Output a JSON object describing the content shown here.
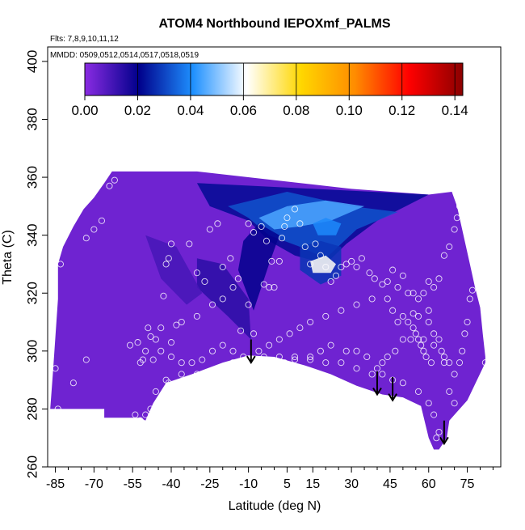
{
  "chart_data": {
    "type": "heatmap",
    "title": "ATOM4 Northbound IEPOXmf_PALMS",
    "annotations": [
      "Flts: 7,8,9,10,11,12",
      "MMDD: 0509,0512,0514,0517,0518,0519"
    ],
    "xlabel": "Latitude (deg N)",
    "ylabel": "Theta (C)",
    "xlim": [
      -88,
      88
    ],
    "ylim": [
      260,
      405
    ],
    "x_ticks": [
      -85,
      -70,
      -55,
      -40,
      -25,
      -10,
      5,
      15,
      30,
      45,
      60,
      75
    ],
    "x_tick_labels": [
      "-85",
      "-70",
      "-55",
      "-40",
      "-25",
      "-10",
      "5",
      "15",
      "30",
      "45",
      "60",
      "75"
    ],
    "y_ticks": [
      260,
      280,
      300,
      320,
      340,
      360,
      380,
      400
    ],
    "y_tick_labels": [
      "260",
      "280",
      "300",
      "320",
      "340",
      "360",
      "380",
      "400"
    ],
    "colorbar": {
      "min": 0,
      "max": 0.143,
      "ticks": [
        0.0,
        0.02,
        0.04,
        0.06,
        0.08,
        0.1,
        0.12,
        0.14
      ],
      "tick_labels": [
        "0.00",
        "0.02",
        "0.04",
        "0.06",
        "0.08",
        "0.10",
        "0.12",
        "0.14"
      ],
      "colors": [
        "#8a2be2",
        "#00008b",
        "#1e90ff",
        "#ffffff",
        "#ffd700",
        "#ff8c00",
        "#ff0000",
        "#8b0000"
      ]
    },
    "field_boundary": [
      [
        -87,
        280
      ],
      [
        -86,
        292
      ],
      [
        -85,
        305
      ],
      [
        -84,
        318
      ],
      [
        -84,
        330
      ],
      [
        -82,
        336
      ],
      [
        -78,
        343
      ],
      [
        -74,
        349
      ],
      [
        -70,
        353
      ],
      [
        -66,
        358
      ],
      [
        -63,
        362
      ],
      [
        -30,
        362
      ],
      [
        0,
        359
      ],
      [
        30,
        356
      ],
      [
        60,
        354
      ],
      [
        69,
        355
      ],
      [
        71,
        350
      ],
      [
        73,
        342
      ],
      [
        76,
        330
      ],
      [
        78,
        322
      ],
      [
        80,
        315
      ],
      [
        81,
        306
      ],
      [
        82,
        298
      ],
      [
        82,
        296
      ],
      [
        75,
        283
      ],
      [
        68,
        276
      ],
      [
        67,
        270
      ],
      [
        64,
        266
      ],
      [
        62,
        266
      ],
      [
        60,
        270
      ],
      [
        57,
        281
      ],
      [
        50,
        284
      ],
      [
        42,
        285
      ],
      [
        32,
        288
      ],
      [
        22,
        292
      ],
      [
        12,
        295
      ],
      [
        0,
        298
      ],
      [
        -10,
        298.5
      ],
      [
        -20,
        296
      ],
      [
        -32,
        292
      ],
      [
        -42,
        289
      ],
      [
        -47,
        282
      ],
      [
        -50,
        276
      ],
      [
        -52,
        277
      ],
      [
        -66,
        277
      ],
      [
        -66,
        280
      ],
      [
        -87,
        280
      ]
    ],
    "enhanced_regions": [
      {
        "polygon": [
          [
            -30,
            358
          ],
          [
            60,
            354
          ],
          [
            40,
            345
          ],
          [
            28,
            337
          ],
          [
            20,
            330
          ],
          [
            8,
            333
          ],
          [
            -2,
            338
          ],
          [
            -10,
            345
          ],
          [
            -25,
            350
          ]
        ],
        "value": 0.022
      },
      {
        "polygon": [
          [
            -18,
            350
          ],
          [
            5,
            355
          ],
          [
            30,
            350
          ],
          [
            48,
            348
          ],
          [
            32,
            342
          ],
          [
            20,
            332
          ],
          [
            10,
            336
          ],
          [
            -2,
            340
          ],
          [
            -10,
            346
          ]
        ],
        "value": 0.032
      },
      {
        "polygon": [
          [
            -6,
            346
          ],
          [
            5,
            350
          ],
          [
            20,
            352
          ],
          [
            35,
            350
          ],
          [
            22,
            345
          ],
          [
            10,
            343
          ],
          [
            0,
            342
          ]
        ],
        "value": 0.045
      },
      {
        "polygon": [
          [
            10,
            336
          ],
          [
            18,
            338
          ],
          [
            26,
            336
          ],
          [
            26,
            326
          ],
          [
            18,
            323
          ],
          [
            10,
            328
          ]
        ],
        "value": 0.028
      },
      {
        "polygon": [
          [
            14,
            331
          ],
          [
            20,
            333
          ],
          [
            24,
            330
          ],
          [
            22,
            327
          ],
          [
            15,
            327
          ]
        ],
        "value": 0.062
      },
      {
        "polygon": [
          [
            15,
            344
          ],
          [
            20,
            346
          ],
          [
            26,
            344
          ],
          [
            24,
            340
          ],
          [
            17,
            340
          ]
        ],
        "value": 0.04
      },
      {
        "polygon": [
          [
            -6,
            344
          ],
          [
            2,
            340
          ],
          [
            -2,
            330
          ],
          [
            -8,
            314
          ],
          [
            -14,
            328
          ],
          [
            -12,
            338
          ]
        ],
        "value": 0.02
      },
      {
        "polygon": [
          [
            -30,
            332
          ],
          [
            -20,
            330
          ],
          [
            -10,
            318
          ],
          [
            -9,
            304
          ],
          [
            -18,
            312
          ],
          [
            -30,
            322
          ]
        ],
        "value": 0.014
      },
      {
        "polygon": [
          [
            -50,
            340
          ],
          [
            -38,
            336
          ],
          [
            -28,
            320
          ],
          [
            -34,
            316
          ],
          [
            -44,
            325
          ]
        ],
        "value": 0.01
      }
    ],
    "points": [
      [
        -85,
        294
      ],
      [
        -84,
        280
      ],
      [
        -83,
        330
      ],
      [
        -78,
        289
      ],
      [
        -73,
        297
      ],
      [
        -73,
        339
      ],
      [
        -70,
        342
      ],
      [
        -67,
        345
      ],
      [
        -64,
        357
      ],
      [
        -62,
        359
      ],
      [
        -56,
        302
      ],
      [
        -53,
        303
      ],
      [
        -52,
        296
      ],
      [
        -51,
        297
      ],
      [
        -50,
        300
      ],
      [
        -49,
        308
      ],
      [
        -48,
        305
      ],
      [
        -47,
        297
      ],
      [
        -52,
        276
      ],
      [
        -41,
        289
      ],
      [
        -40,
        303
      ],
      [
        -38,
        309
      ],
      [
        -43,
        319
      ],
      [
        -42,
        330
      ],
      [
        -41,
        332
      ],
      [
        -40,
        337
      ],
      [
        -33,
        337
      ],
      [
        -30,
        327
      ],
      [
        -27,
        324
      ],
      [
        -25,
        342
      ],
      [
        -22,
        344
      ],
      [
        -20,
        329
      ],
      [
        -17,
        332
      ],
      [
        -14,
        325
      ],
      [
        -13,
        307
      ],
      [
        -10,
        344
      ],
      [
        -8,
        341
      ],
      [
        -5,
        343
      ],
      [
        -3,
        338
      ],
      [
        -1,
        331
      ],
      [
        -4,
        323
      ],
      [
        -2,
        322
      ],
      [
        0,
        322
      ],
      [
        2,
        331
      ],
      [
        3,
        339
      ],
      [
        4,
        343
      ],
      [
        5,
        346
      ],
      [
        8,
        349
      ],
      [
        10,
        344
      ],
      [
        12,
        336
      ],
      [
        14,
        330
      ],
      [
        16,
        337
      ],
      [
        18,
        333
      ],
      [
        20,
        329
      ],
      [
        22,
        324
      ],
      [
        24,
        326
      ],
      [
        26,
        329
      ],
      [
        28,
        330
      ],
      [
        30,
        331
      ],
      [
        32,
        329
      ],
      [
        34,
        332
      ],
      [
        37,
        327
      ],
      [
        39,
        325
      ],
      [
        42,
        323
      ],
      [
        44,
        324
      ],
      [
        46,
        328
      ],
      [
        48,
        322
      ],
      [
        50,
        326
      ],
      [
        52,
        320
      ],
      [
        54,
        320
      ],
      [
        56,
        318
      ],
      [
        58,
        320
      ],
      [
        60,
        314
      ],
      [
        60,
        310
      ],
      [
        59,
        298
      ],
      [
        58,
        300
      ],
      [
        61,
        296
      ],
      [
        62,
        306
      ],
      [
        64,
        304
      ],
      [
        65,
        300
      ],
      [
        66,
        298
      ],
      [
        68,
        296
      ],
      [
        70,
        292
      ],
      [
        72,
        296
      ],
      [
        73,
        300
      ],
      [
        74,
        306
      ],
      [
        75,
        310
      ],
      [
        76,
        318
      ],
      [
        77,
        321
      ],
      [
        78,
        330
      ],
      [
        79,
        340
      ],
      [
        80,
        345
      ],
      [
        80,
        350
      ],
      [
        79,
        354
      ],
      [
        78,
        356
      ],
      [
        76,
        354
      ],
      [
        74,
        352
      ],
      [
        72,
        350
      ],
      [
        71,
        346
      ],
      [
        70,
        342
      ],
      [
        68,
        336
      ],
      [
        66,
        333
      ],
      [
        64,
        325
      ],
      [
        62,
        322
      ],
      [
        60,
        324
      ],
      [
        56,
        312
      ],
      [
        54,
        313
      ],
      [
        53,
        304
      ],
      [
        50,
        304
      ],
      [
        47,
        300
      ],
      [
        44,
        298
      ],
      [
        42,
        296
      ],
      [
        40,
        294
      ],
      [
        36,
        298
      ],
      [
        32,
        300
      ],
      [
        28,
        300
      ],
      [
        22,
        302
      ],
      [
        18,
        300
      ],
      [
        14,
        298
      ],
      [
        8,
        297
      ],
      [
        4,
        296
      ],
      [
        0,
        295
      ],
      [
        -4,
        294
      ],
      [
        -8,
        296
      ],
      [
        -12,
        298
      ],
      [
        -16,
        300
      ],
      [
        -20,
        302
      ],
      [
        -24,
        300
      ],
      [
        -28,
        297
      ],
      [
        -32,
        296
      ],
      [
        -36,
        296
      ],
      [
        -40,
        298
      ],
      [
        -44,
        300
      ],
      [
        -46,
        304
      ],
      [
        -44,
        308
      ],
      [
        -36,
        310
      ],
      [
        -30,
        312
      ],
      [
        -24,
        316
      ],
      [
        -20,
        318
      ],
      [
        -16,
        322
      ],
      [
        -10,
        316
      ],
      [
        -8,
        306
      ],
      [
        -6,
        300
      ],
      [
        -2,
        302
      ],
      [
        2,
        304
      ],
      [
        6,
        306
      ],
      [
        10,
        308
      ],
      [
        14,
        310
      ],
      [
        20,
        312
      ],
      [
        26,
        314
      ],
      [
        32,
        316
      ],
      [
        38,
        318
      ],
      [
        44,
        318
      ],
      [
        46,
        314
      ],
      [
        48,
        310
      ],
      [
        50,
        312
      ],
      [
        52,
        310
      ],
      [
        54,
        308
      ],
      [
        55,
        306
      ],
      [
        56,
        304
      ],
      [
        57,
        302
      ],
      [
        58,
        304
      ],
      [
        62,
        302
      ],
      [
        66,
        296
      ],
      [
        68,
        286
      ],
      [
        70,
        282
      ],
      [
        72,
        276
      ],
      [
        74,
        272
      ],
      [
        76,
        268
      ],
      [
        78,
        266
      ],
      [
        80,
        268
      ],
      [
        82,
        296
      ],
      [
        63,
        270
      ],
      [
        64,
        272
      ],
      [
        62,
        278
      ],
      [
        60,
        282
      ],
      [
        56,
        286
      ],
      [
        50,
        289
      ],
      [
        46,
        290
      ],
      [
        42,
        292
      ],
      [
        38,
        292
      ],
      [
        32,
        294
      ],
      [
        26,
        296
      ],
      [
        20,
        296
      ],
      [
        14,
        297
      ],
      [
        8,
        298
      ],
      [
        2,
        298
      ],
      [
        -4,
        298
      ],
      [
        -10,
        297
      ],
      [
        -16,
        296
      ],
      [
        -22,
        294
      ],
      [
        -30,
        292
      ],
      [
        -36,
        292
      ],
      [
        -42,
        290
      ],
      [
        -46,
        286
      ],
      [
        -48,
        280
      ],
      [
        -50,
        278
      ],
      [
        -54,
        278
      ]
    ],
    "arrows": [
      {
        "x": -9,
        "y_top": 304,
        "y_bottom": 296
      },
      {
        "x": 40,
        "y_top": 293,
        "y_bottom": 285
      },
      {
        "x": 46,
        "y_top": 291,
        "y_bottom": 283
      },
      {
        "x": 66,
        "y_top": 276,
        "y_bottom": 268
      }
    ],
    "grid": false,
    "legend": "top"
  }
}
